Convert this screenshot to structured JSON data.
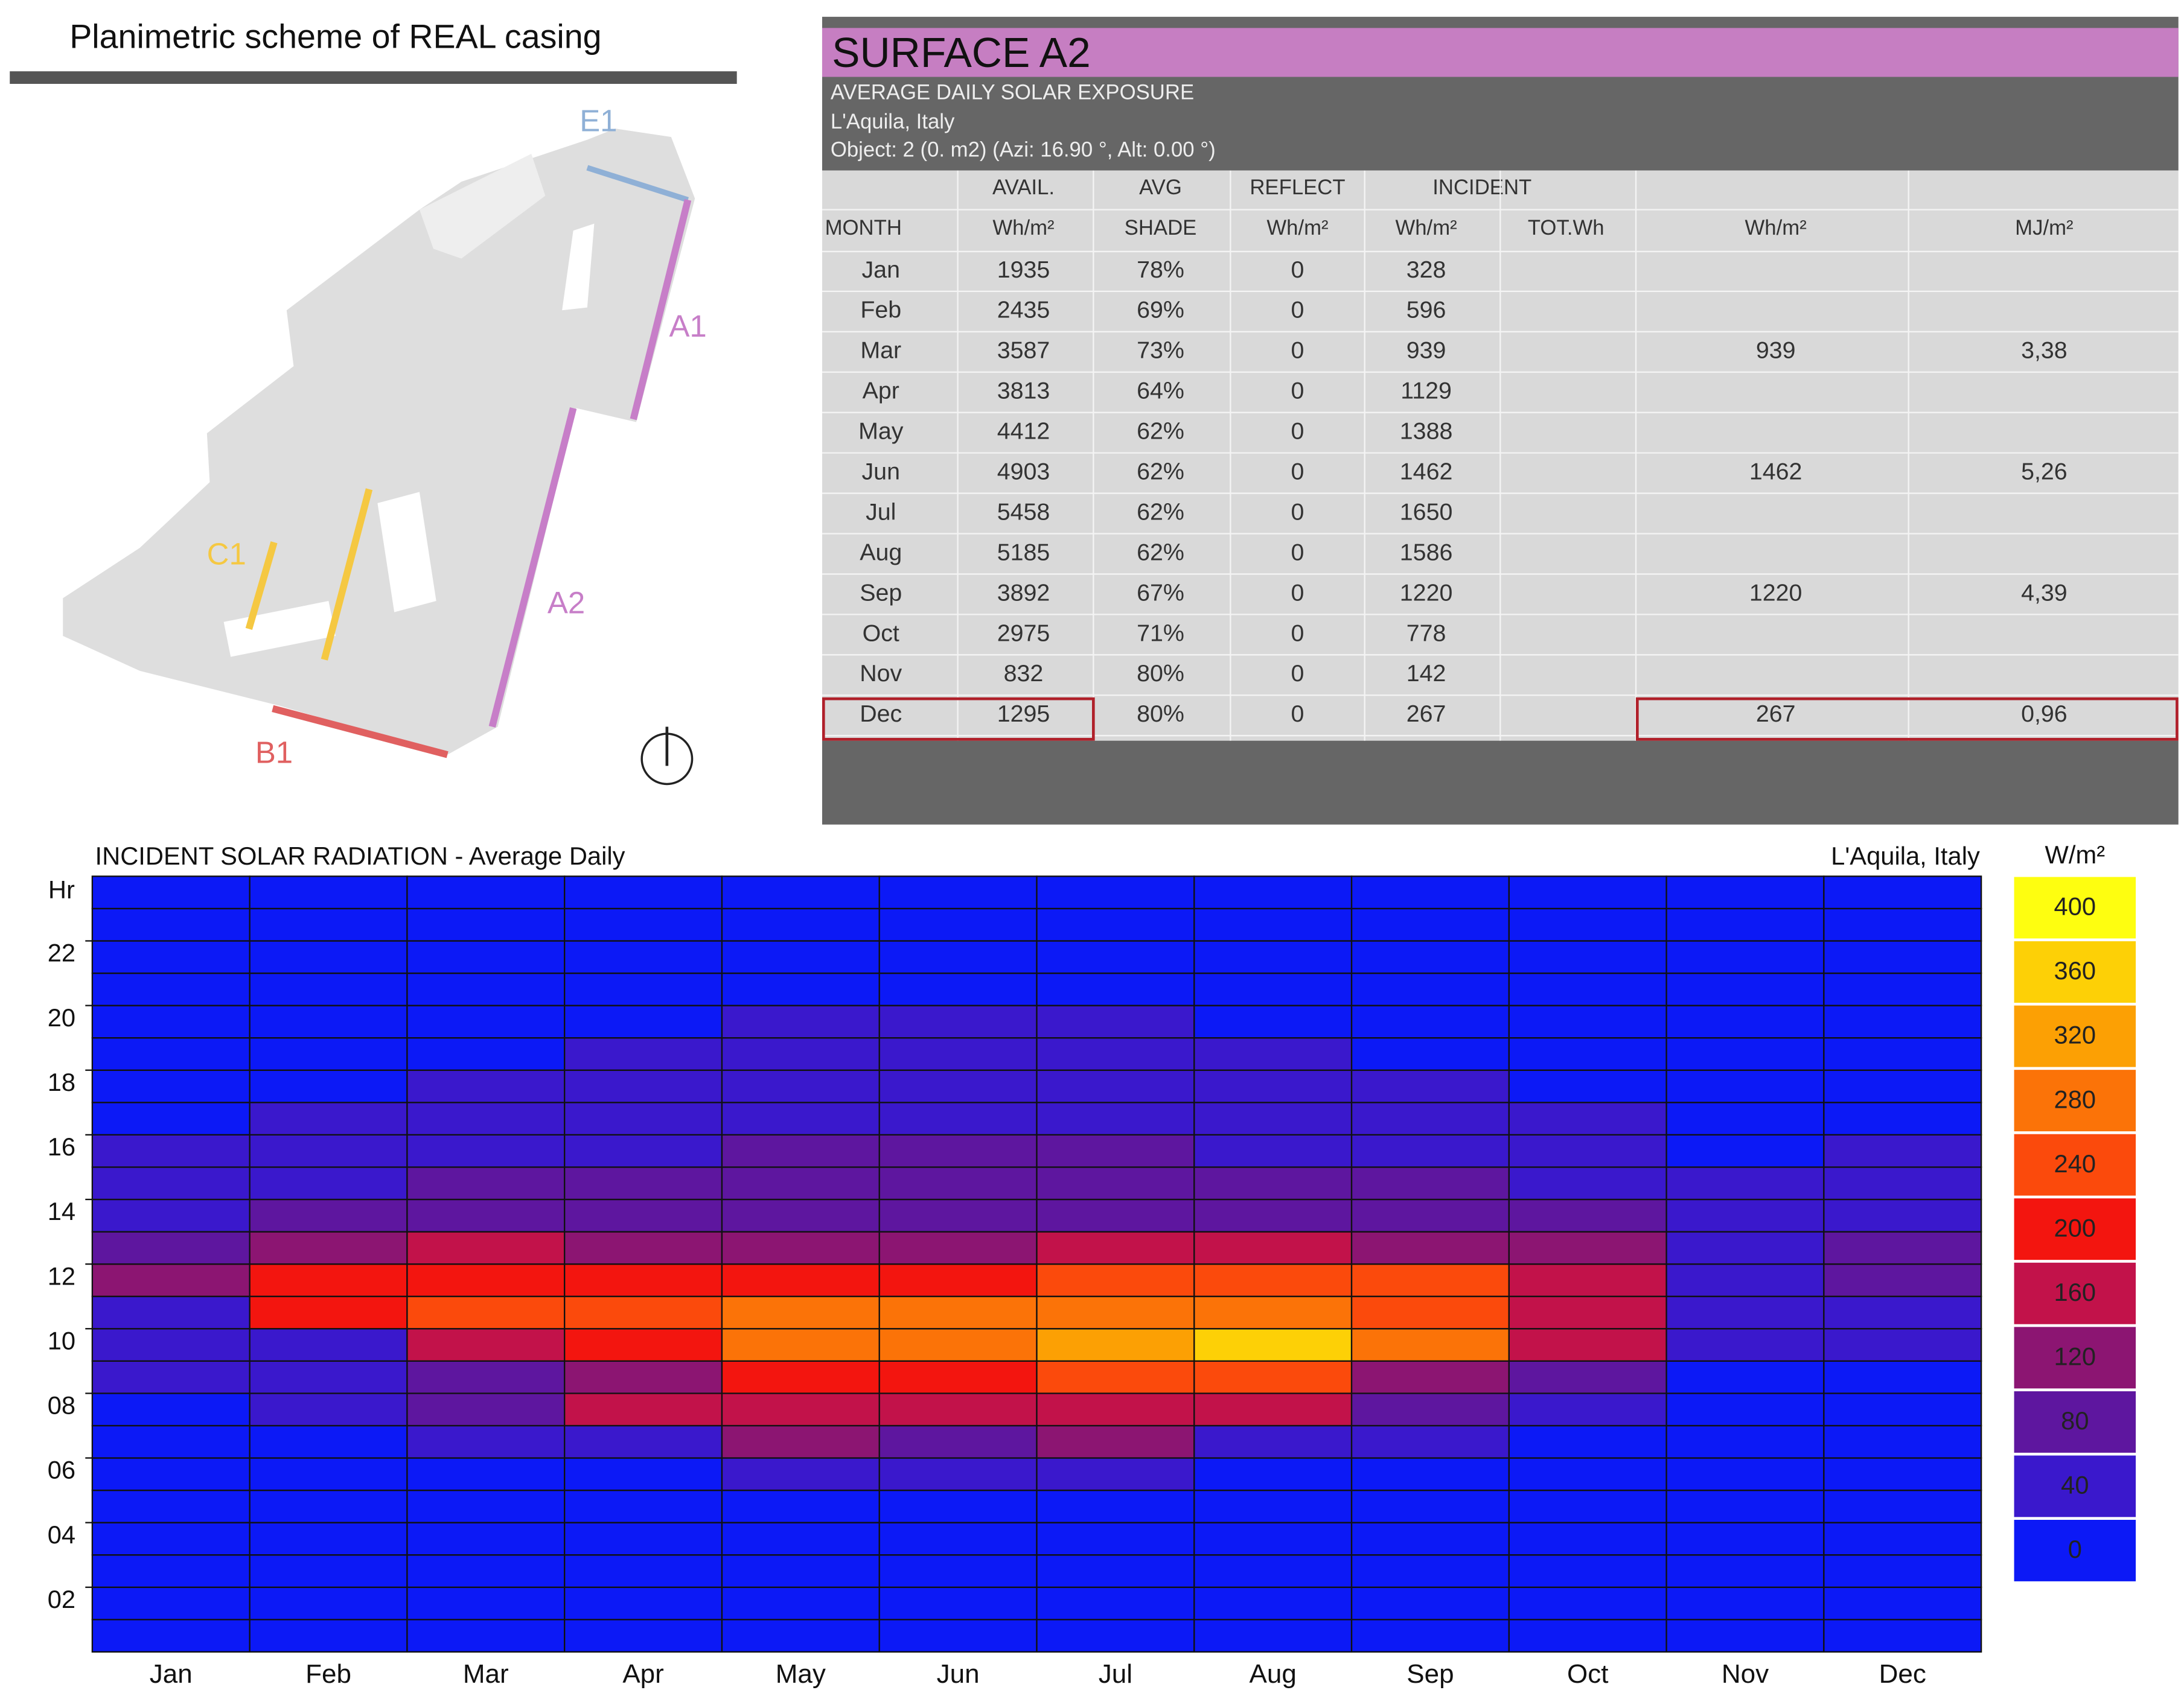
{
  "plan": {
    "title": "Planimetric scheme of REAL casing",
    "labels": [
      "E1",
      "A1",
      "A2",
      "C1",
      "B1"
    ]
  },
  "panel": {
    "title": "SURFACE A2",
    "subtitle": [
      "AVERAGE DAILY SOLAR EXPOSURE",
      "L'Aquila, Italy",
      "Object:  2  (0. m2) (Azi:  16.90 °, Alt:  0.00 °)"
    ]
  },
  "table": {
    "header": [
      [
        null,
        "AVAIL.",
        "AVG",
        "REFLECT",
        "INCIDENT",
        null,
        null,
        null
      ],
      [
        "MONTH",
        "Wh/m²",
        "SHADE",
        "Wh/m²",
        "Wh/m²",
        "TOT.Wh",
        "Wh/m²",
        "MJ/m²"
      ]
    ],
    "rows": [
      [
        "Jan",
        "1935",
        "78%",
        "0",
        "328",
        null,
        null,
        null
      ],
      [
        "Feb",
        "2435",
        "69%",
        "0",
        "596",
        null,
        null,
        null
      ],
      [
        "Mar",
        "3587",
        "73%",
        "0",
        "939",
        null,
        "939",
        "3,38"
      ],
      [
        "Apr",
        "3813",
        "64%",
        "0",
        "1129",
        null,
        null,
        null
      ],
      [
        "May",
        "4412",
        "62%",
        "0",
        "1388",
        null,
        null,
        null
      ],
      [
        "Jun",
        "4903",
        "62%",
        "0",
        "1462",
        null,
        "1462",
        "5,26"
      ],
      [
        "Jul",
        "5458",
        "62%",
        "0",
        "1650",
        null,
        null,
        null
      ],
      [
        "Aug",
        "5185",
        "62%",
        "0",
        "1586",
        null,
        null,
        null
      ],
      [
        "Sep",
        "3892",
        "67%",
        "0",
        "1220",
        null,
        "1220",
        "4,39"
      ],
      [
        "Oct",
        "2975",
        "71%",
        "0",
        "778",
        null,
        null,
        null
      ],
      [
        "Nov",
        "832",
        "80%",
        "0",
        "142",
        null,
        null,
        null
      ],
      [
        "Dec",
        "1295",
        "80%",
        "0",
        "267",
        null,
        "267",
        "0,96"
      ]
    ]
  },
  "chart_data": {
    "type": "heatmap",
    "title": "INCIDENT SOLAR RADIATION - Average Daily",
    "subtitle": "L'Aquila, Italy",
    "y_label": "Hr",
    "categories": [
      "Jan",
      "Feb",
      "Mar",
      "Apr",
      "May",
      "Jun",
      "Jul",
      "Aug",
      "Sep",
      "Oct",
      "Nov",
      "Dec"
    ],
    "ylim": [
      0,
      24
    ],
    "yticks": [
      {
        "value": 2,
        "label": "02"
      },
      {
        "value": 4,
        "label": "04"
      },
      {
        "value": 6,
        "label": "06"
      },
      {
        "value": 8,
        "label": "08"
      },
      10,
      12,
      14,
      16,
      18,
      20,
      22
    ],
    "values": [
      [
        0,
        0,
        0,
        0,
        0,
        0,
        0,
        10,
        20,
        50,
        40,
        100,
        80,
        40,
        30,
        20,
        10,
        0,
        0,
        0,
        0,
        0,
        0,
        0
      ],
      [
        0,
        0,
        0,
        0,
        0,
        0,
        10,
        20,
        50,
        40,
        190,
        180,
        120,
        70,
        50,
        40,
        30,
        10,
        0,
        0,
        0,
        0,
        0,
        0
      ],
      [
        0,
        0,
        0,
        0,
        0,
        0,
        20,
        60,
        70,
        170,
        240,
        210,
        140,
        80,
        60,
        50,
        40,
        30,
        10,
        0,
        0,
        0,
        0,
        0
      ],
      [
        0,
        0,
        0,
        0,
        0,
        5,
        50,
        140,
        120,
        210,
        250,
        190,
        110,
        80,
        60,
        50,
        40,
        30,
        20,
        10,
        0,
        0,
        0,
        0
      ],
      [
        0,
        0,
        0,
        0,
        10,
        30,
        110,
        160,
        200,
        290,
        260,
        180,
        110,
        90,
        70,
        60,
        50,
        40,
        30,
        20,
        0,
        0,
        0,
        0
      ],
      [
        0,
        0,
        0,
        0,
        10,
        40,
        90,
        170,
        200,
        290,
        260,
        180,
        130,
        90,
        70,
        60,
        50,
        40,
        30,
        20,
        0,
        0,
        0,
        0
      ],
      [
        0,
        0,
        0,
        0,
        10,
        30,
        100,
        170,
        240,
        300,
        260,
        220,
        150,
        90,
        70,
        60,
        50,
        40,
        30,
        20,
        0,
        0,
        0,
        0
      ],
      [
        0,
        0,
        0,
        0,
        0,
        10,
        50,
        170,
        220,
        350,
        270,
        220,
        150,
        80,
        60,
        50,
        40,
        30,
        20,
        10,
        0,
        0,
        0,
        0
      ],
      [
        0,
        0,
        0,
        0,
        0,
        0,
        20,
        60,
        130,
        270,
        250,
        220,
        130,
        80,
        60,
        50,
        40,
        20,
        10,
        0,
        0,
        0,
        0,
        0
      ],
      [
        0,
        0,
        0,
        0,
        0,
        0,
        10,
        30,
        60,
        170,
        170,
        170,
        100,
        60,
        50,
        30,
        20,
        10,
        0,
        0,
        0,
        0,
        0,
        0
      ],
      [
        0,
        0,
        0,
        0,
        0,
        0,
        0,
        5,
        10,
        30,
        40,
        50,
        50,
        30,
        20,
        10,
        5,
        0,
        0,
        0,
        0,
        0,
        0,
        0
      ],
      [
        0,
        0,
        0,
        0,
        0,
        0,
        0,
        5,
        10,
        30,
        40,
        80,
        60,
        40,
        30,
        20,
        10,
        0,
        0,
        0,
        0,
        0,
        0,
        0
      ]
    ],
    "colorbar": {
      "label": "W/m²",
      "ticks": [
        0,
        40,
        80,
        120,
        160,
        200,
        240,
        280,
        320,
        360,
        400
      ],
      "colors": [
        "#0c19f6",
        "#3a18cc",
        "#5e169f",
        "#8c1572",
        "#c2124a",
        "#f3150f",
        "#fb4a0c",
        "#fb7308",
        "#fca004",
        "#fdd006",
        "#fefe10"
      ]
    }
  }
}
